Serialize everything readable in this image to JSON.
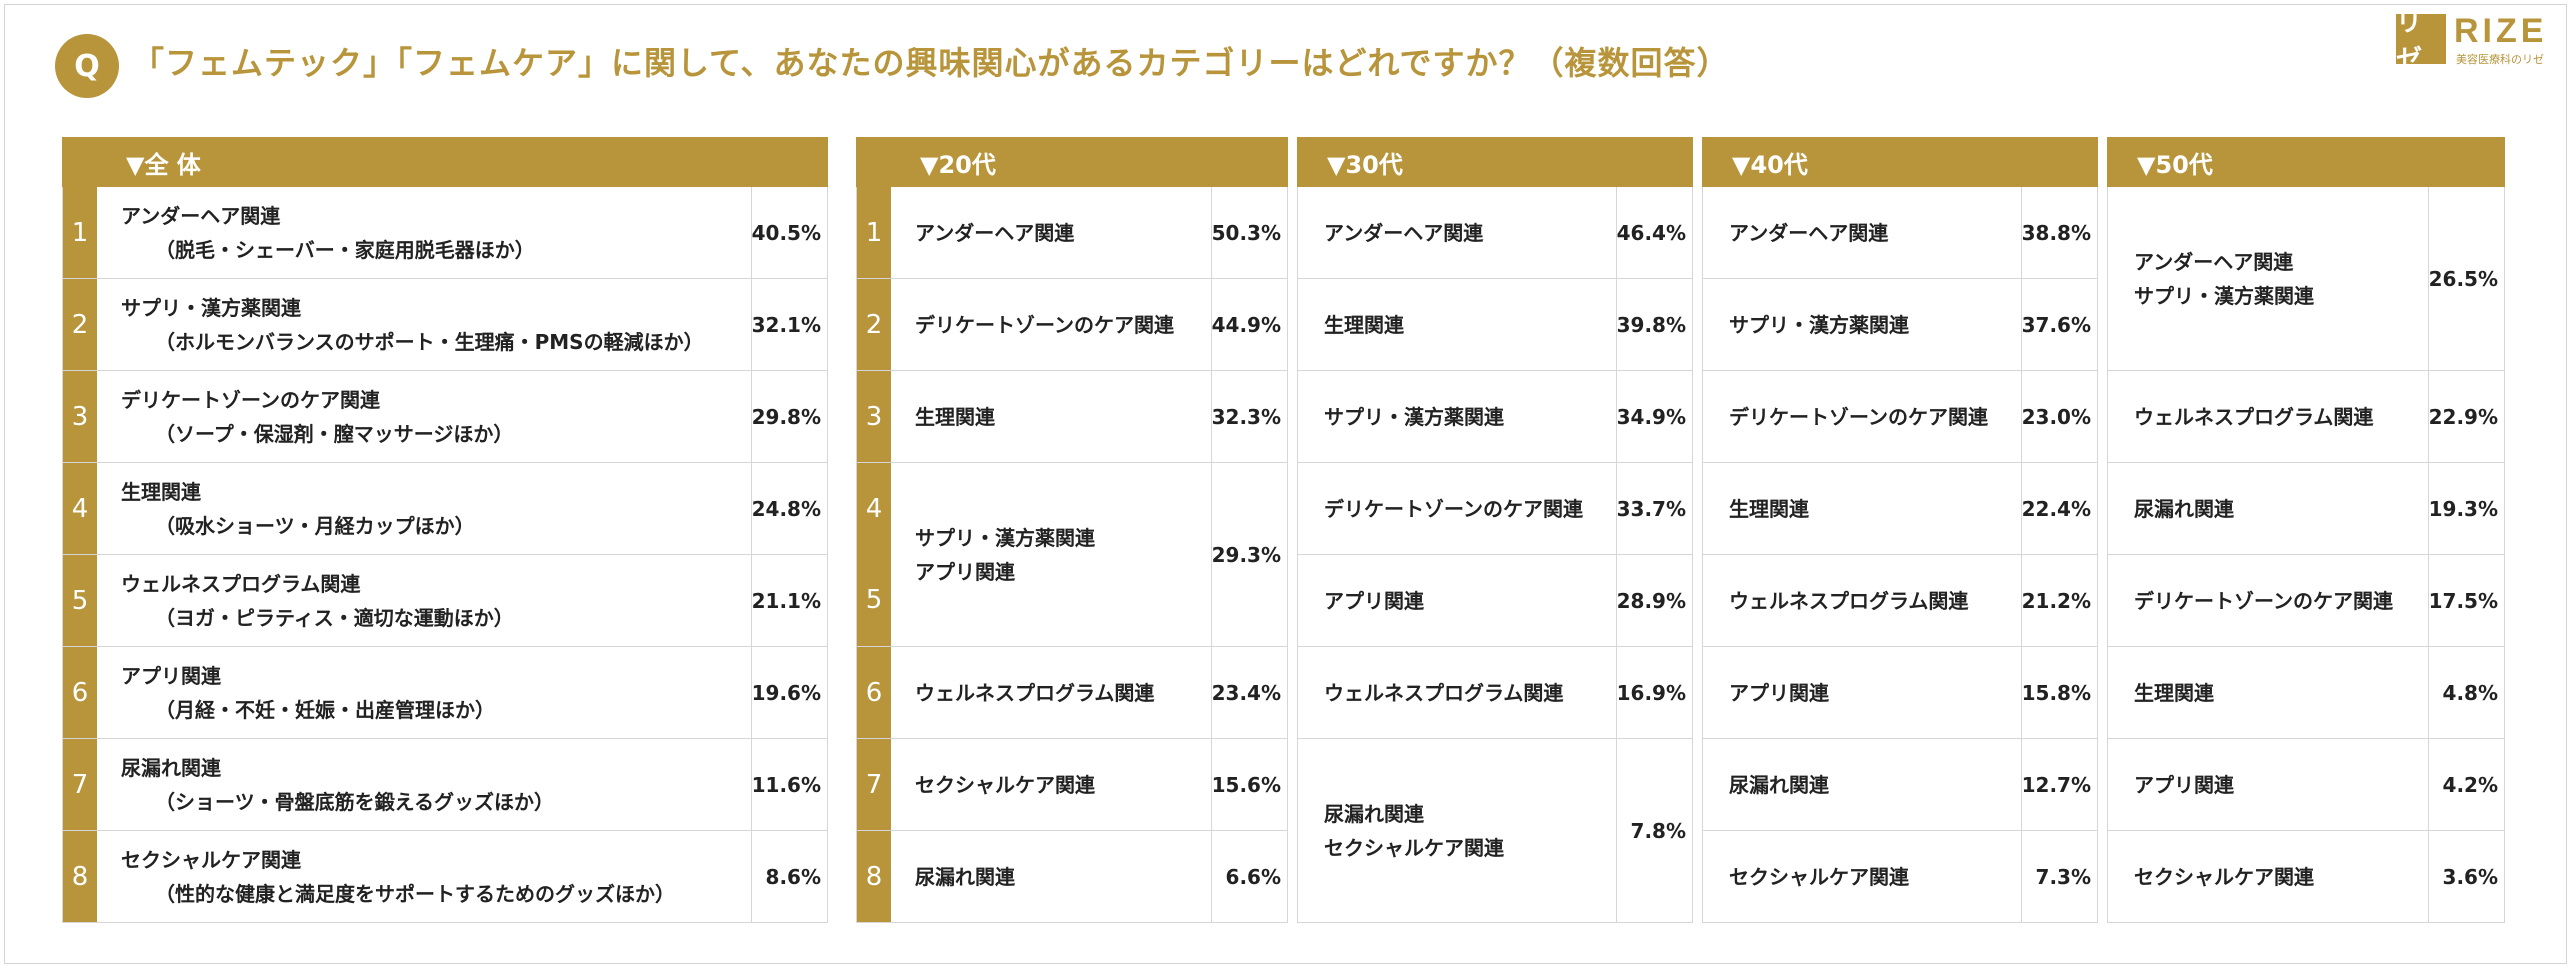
{
  "question": {
    "badge": "Q",
    "text": "「フェムテック」「フェムケア」に関して、あなたの興味関心があるカテゴリーはどれですか？（複数回答）"
  },
  "logo": {
    "mark": "リゼ",
    "word": "RIZE",
    "sub": "美容医療科のリゼ"
  },
  "colors": {
    "accent": "#b8953b",
    "grid": "#d6d6d6"
  },
  "panels": {
    "all": {
      "title": "▼全 体",
      "rows": [
        {
          "n": "1",
          "label": "アンダーヘア関連",
          "sub": "（脱毛・シェーバー・家庭用脱毛器ほか）",
          "value": "40.5%"
        },
        {
          "n": "2",
          "label": "サプリ・漢方薬関連",
          "sub": "（ホルモンバランスのサポート・生理痛・PMSの軽減ほか）",
          "value": "32.1%"
        },
        {
          "n": "3",
          "label": "デリケートゾーンのケア関連",
          "sub": "（ソープ・保湿剤・膣マッサージほか）",
          "value": "29.8%"
        },
        {
          "n": "4",
          "label": "生理関連",
          "sub": "（吸水ショーツ・月経カップほか）",
          "value": "24.8%"
        },
        {
          "n": "5",
          "label": "ウェルネスプログラム関連",
          "sub": "（ヨガ・ピラティス・適切な運動ほか）",
          "value": "21.1%"
        },
        {
          "n": "6",
          "label": "アプリ関連",
          "sub": "（月経・不妊・妊娠・出産管理ほか）",
          "value": "19.6%"
        },
        {
          "n": "7",
          "label": "尿漏れ関連",
          "sub": "（ショーツ・骨盤底筋を鍛えるグッズほか）",
          "value": "11.6%"
        },
        {
          "n": "8",
          "label": "セクシャルケア関連",
          "sub": "（性的な健康と満足度をサポートするためのグッズほか）",
          "value": "8.6%"
        }
      ]
    },
    "age20": {
      "title": "▼20代",
      "rows": [
        {
          "n": "1",
          "label": "アンダーヘア関連",
          "value": "50.3%"
        },
        {
          "n": "2",
          "label": "デリケートゾーンのケア関連",
          "value": "44.9%"
        },
        {
          "n": "3",
          "label": "生理関連",
          "value": "32.3%"
        },
        {
          "n": "4",
          "n2": "5",
          "label": "サプリ・漢方薬関連",
          "label2": "アプリ関連",
          "value": "29.3%"
        },
        {
          "n": "6",
          "label": "ウェルネスプログラム関連",
          "value": "23.4%"
        },
        {
          "n": "7",
          "label": "セクシャルケア関連",
          "value": "15.6%"
        },
        {
          "n": "8",
          "label": "尿漏れ関連",
          "value": "6.6%"
        }
      ]
    },
    "age30": {
      "title": "▼30代",
      "rows": [
        {
          "label": "アンダーヘア関連",
          "value": "46.4%"
        },
        {
          "label": "生理関連",
          "value": "39.8%"
        },
        {
          "label": "サプリ・漢方薬関連",
          "value": "34.9%"
        },
        {
          "label": "デリケートゾーンのケア関連",
          "value": "33.7%"
        },
        {
          "label": "アプリ関連",
          "value": "28.9%"
        },
        {
          "label": "ウェルネスプログラム関連",
          "value": "16.9%"
        },
        {
          "label": "尿漏れ関連",
          "label2": "セクシャルケア関連",
          "value": "7.8%"
        }
      ]
    },
    "age40": {
      "title": "▼40代",
      "rows": [
        {
          "label": "アンダーヘア関連",
          "value": "38.8%"
        },
        {
          "label": "サプリ・漢方薬関連",
          "value": "37.6%"
        },
        {
          "label": "デリケートゾーンのケア関連",
          "value": "23.0%"
        },
        {
          "label": "生理関連",
          "value": "22.4%"
        },
        {
          "label": "ウェルネスプログラム関連",
          "value": "21.2%"
        },
        {
          "label": "アプリ関連",
          "value": "15.8%"
        },
        {
          "label": "尿漏れ関連",
          "value": "12.7%"
        },
        {
          "label": "セクシャルケア関連",
          "value": "7.3%"
        }
      ]
    },
    "age50": {
      "title": "▼50代",
      "rows": [
        {
          "label": "アンダーヘア関連",
          "label2": "サプリ・漢方薬関連",
          "value": "26.5%"
        },
        {
          "label": "ウェルネスプログラム関連",
          "value": "22.9%"
        },
        {
          "label": "尿漏れ関連",
          "value": "19.3%"
        },
        {
          "label": "デリケートゾーンのケア関連",
          "value": "17.5%"
        },
        {
          "label": "生理関連",
          "value": "4.8%"
        },
        {
          "label": "アプリ関連",
          "value": "4.2%"
        },
        {
          "label": "セクシャルケア関連",
          "value": "3.6%"
        }
      ]
    }
  }
}
